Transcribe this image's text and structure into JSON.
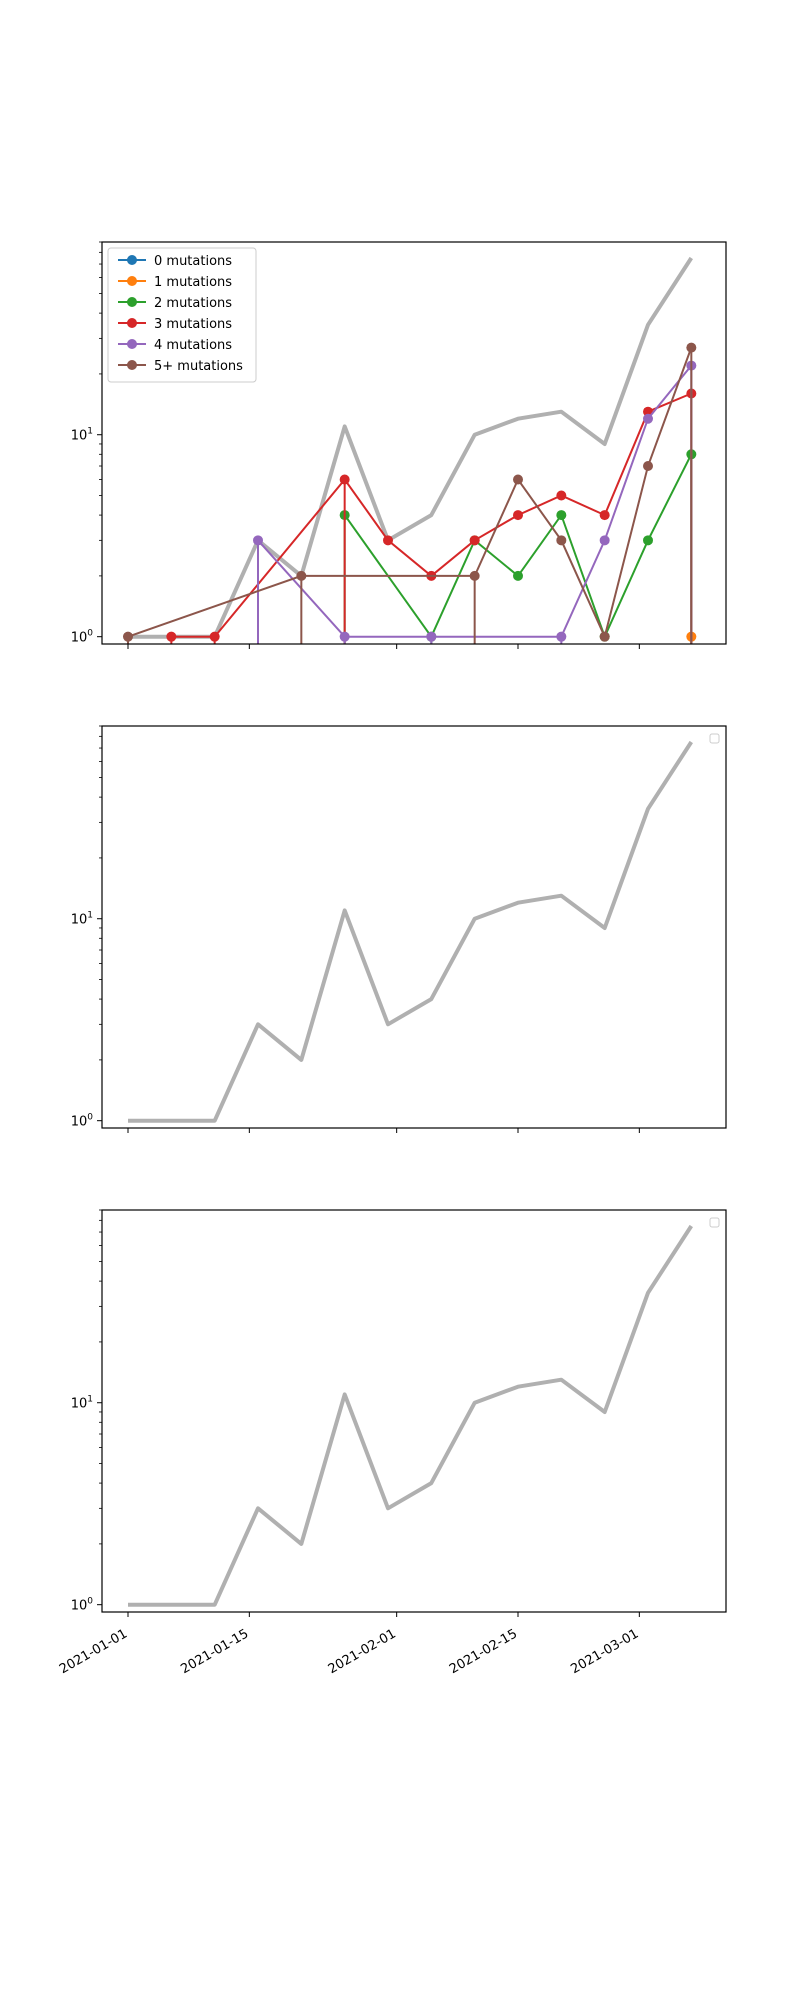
{
  "chart_data": [
    {
      "type": "line",
      "yscale": "log",
      "ylim": [
        0.92,
        90
      ],
      "xlim": [
        "2020-12-29",
        "2021-03-11"
      ],
      "yticks": [
        {
          "value": 1,
          "base": "10",
          "exp": "0"
        },
        {
          "value": 10,
          "base": "10",
          "exp": "1"
        }
      ],
      "xticks": [],
      "total": {
        "color": "#b0b0b0",
        "x": [
          "2021-01-01",
          "2021-01-06",
          "2021-01-11",
          "2021-01-16",
          "2021-01-21",
          "2021-01-26",
          "2021-01-31",
          "2021-02-05",
          "2021-02-10",
          "2021-02-15",
          "2021-02-20",
          "2021-02-25",
          "2021-03-02",
          "2021-03-07"
        ],
        "y": [
          1,
          1,
          1,
          3,
          2,
          11,
          3,
          4,
          10,
          12,
          13,
          9,
          35,
          75
        ]
      },
      "legend": {
        "position": "upper left",
        "show_box": true
      },
      "series": [
        {
          "name": "0 mutations",
          "color": "#1f77b4",
          "x": [],
          "y": []
        },
        {
          "name": "1 mutations",
          "color": "#ff7f0e",
          "x": [
            "2021-03-07"
          ],
          "y": [
            1
          ]
        },
        {
          "name": "2 mutations",
          "color": "#2ca02c",
          "x": [
            "2021-01-26",
            "2021-02-05",
            "2021-02-10",
            "2021-02-15",
            "2021-02-20",
            "2021-02-25",
            "2021-03-02",
            "2021-03-07"
          ],
          "y": [
            4,
            1,
            3,
            2,
            4,
            1,
            3,
            8
          ]
        },
        {
          "name": "3 mutations",
          "color": "#d62728",
          "x": [
            "2021-01-06",
            "2021-01-11",
            "2021-01-26",
            "2021-01-31",
            "2021-02-05",
            "2021-02-10",
            "2021-02-15",
            "2021-02-20",
            "2021-02-25",
            "2021-03-02",
            "2021-03-07"
          ],
          "y": [
            1,
            1,
            6,
            3,
            2,
            3,
            4,
            5,
            4,
            13,
            16
          ]
        },
        {
          "name": "4 mutations",
          "color": "#9467bd",
          "x": [
            "2021-01-16",
            "2021-01-26",
            "2021-02-05",
            "2021-02-20",
            "2021-02-25",
            "2021-03-02",
            "2021-03-07"
          ],
          "y": [
            3,
            1,
            1,
            1,
            3,
            12,
            22
          ]
        },
        {
          "name": "5+ mutations",
          "color": "#8c564b",
          "x": [
            "2021-01-01",
            "2021-01-21",
            "2021-02-10",
            "2021-02-15",
            "2021-02-20",
            "2021-02-25",
            "2021-03-02",
            "2021-03-07"
          ],
          "y": [
            1,
            2,
            2,
            6,
            3,
            1,
            7,
            27
          ]
        }
      ]
    },
    {
      "type": "line",
      "yscale": "log",
      "ylim": [
        0.92,
        90
      ],
      "xlim": [
        "2020-12-29",
        "2021-03-11"
      ],
      "yticks": [
        {
          "value": 1,
          "base": "10",
          "exp": "0"
        },
        {
          "value": 10,
          "base": "10",
          "exp": "1"
        }
      ],
      "xticks": [],
      "total": {
        "color": "#b0b0b0",
        "x": [
          "2021-01-01",
          "2021-01-06",
          "2021-01-11",
          "2021-01-16",
          "2021-01-21",
          "2021-01-26",
          "2021-01-31",
          "2021-02-05",
          "2021-02-10",
          "2021-02-15",
          "2021-02-20",
          "2021-02-25",
          "2021-03-02",
          "2021-03-07"
        ],
        "y": [
          1,
          1,
          1,
          3,
          2,
          11,
          3,
          4,
          10,
          12,
          13,
          9,
          35,
          75
        ]
      },
      "legend": {
        "position": "upper right",
        "show_box": true,
        "empty": true
      },
      "series": []
    },
    {
      "type": "line",
      "yscale": "log",
      "ylim": [
        0.92,
        90
      ],
      "xlim": [
        "2020-12-29",
        "2021-03-11"
      ],
      "yticks": [
        {
          "value": 1,
          "base": "10",
          "exp": "0"
        },
        {
          "value": 10,
          "base": "10",
          "exp": "1"
        }
      ],
      "xticks": [
        "2021-01-01",
        "2021-01-15",
        "2021-02-01",
        "2021-02-15",
        "2021-03-01"
      ],
      "total": {
        "color": "#b0b0b0",
        "x": [
          "2021-01-01",
          "2021-01-06",
          "2021-01-11",
          "2021-01-16",
          "2021-01-21",
          "2021-01-26",
          "2021-01-31",
          "2021-02-05",
          "2021-02-10",
          "2021-02-15",
          "2021-02-20",
          "2021-02-25",
          "2021-03-02",
          "2021-03-07"
        ],
        "y": [
          1,
          1,
          1,
          3,
          2,
          11,
          3,
          4,
          10,
          12,
          13,
          9,
          35,
          75
        ]
      },
      "legend": {
        "position": "upper right",
        "show_box": true,
        "empty": true
      },
      "series": []
    }
  ]
}
